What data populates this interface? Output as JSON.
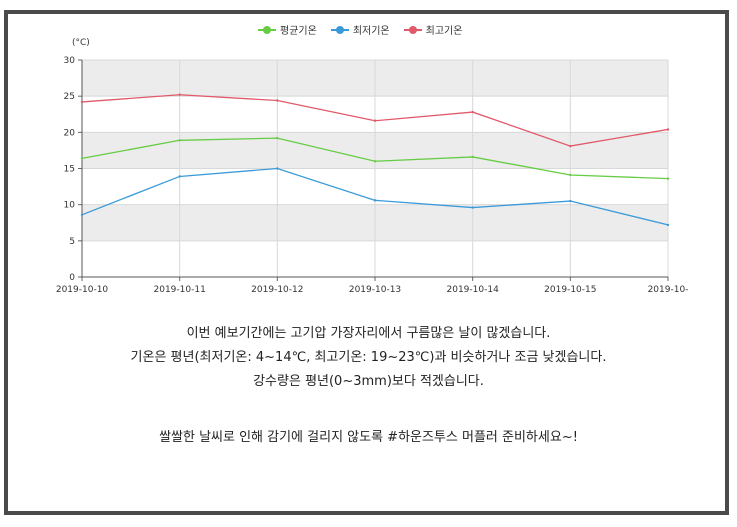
{
  "chart_data": {
    "type": "line",
    "unit_label": "(°C)",
    "categories": [
      "2019-10-10",
      "2019-10-11",
      "2019-10-12",
      "2019-10-13",
      "2019-10-14",
      "2019-10-15",
      "2019-10-"
    ],
    "series": [
      {
        "name": "평균기온",
        "color": "#66cc44",
        "values": [
          16.4,
          18.9,
          19.2,
          16.0,
          16.6,
          14.1,
          13.6
        ]
      },
      {
        "name": "최저기온",
        "color": "#3a9ad9",
        "values": [
          8.6,
          13.9,
          15.0,
          10.6,
          9.6,
          10.5,
          7.2
        ]
      },
      {
        "name": "최고기온",
        "color": "#e05a6a",
        "values": [
          24.2,
          25.2,
          24.4,
          21.6,
          22.8,
          18.1,
          20.4
        ]
      }
    ],
    "ylim": [
      0,
      30
    ],
    "yticks": [
      0,
      5,
      10,
      15,
      20,
      25,
      30
    ],
    "grid": true,
    "legend": "top-center"
  },
  "notes": [
    "이번 예보기간에는 고기압 가장자리에서 구름많은 날이 많겠습니다.",
    "기온은 평년(최저기온: 4~14℃, 최고기온: 19~23℃)과 비슷하거나 조금 낮겠습니다.",
    "강수량은 평년(0~3mm)보다 적겠습니다.",
    "쌀쌀한 날씨로 인해 감기에 걸리지 않도록 #하운즈투스 머플러 준비하세요~!"
  ]
}
